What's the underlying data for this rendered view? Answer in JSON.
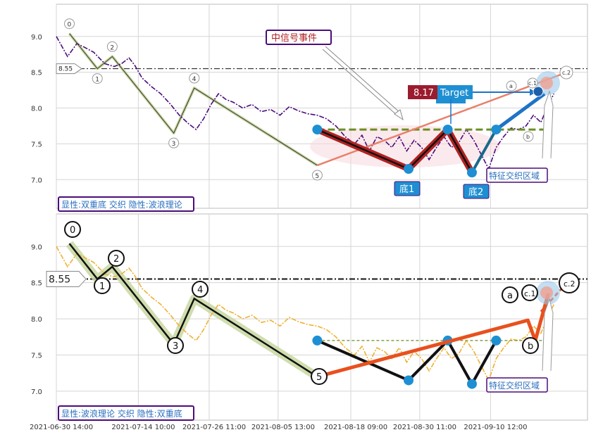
{
  "chart_data": [
    {
      "type": "line",
      "panel": "top",
      "yticks": [
        7.0,
        7.5,
        8.0,
        8.5,
        9.0
      ],
      "ylim": [
        6.6,
        9.45
      ],
      "xticks": [
        "2021-06-30 14:00",
        "2021-07-14 10:00",
        "2021-07-26 11:00",
        "2021-08-05 13:00",
        "2021-08-18 09:00",
        "2021-08-30 11:00",
        "2021-09-10 12:00"
      ],
      "price_series": [
        [
          0,
          9.0
        ],
        [
          0.6,
          8.72
        ],
        [
          1.1,
          8.9
        ],
        [
          1.5,
          8.85
        ],
        [
          2.0,
          8.78
        ],
        [
          2.6,
          8.62
        ],
        [
          3.1,
          8.58
        ],
        [
          3.5,
          8.62
        ],
        [
          3.9,
          8.7
        ],
        [
          4.2,
          8.6
        ],
        [
          4.6,
          8.42
        ],
        [
          5.1,
          8.3
        ],
        [
          5.6,
          8.2
        ],
        [
          6.1,
          8.06
        ],
        [
          6.6,
          7.9
        ],
        [
          7.1,
          7.78
        ],
        [
          7.5,
          7.7
        ],
        [
          7.9,
          7.85
        ],
        [
          8.3,
          8.05
        ],
        [
          8.7,
          8.2
        ],
        [
          9.1,
          8.12
        ],
        [
          9.5,
          8.08
        ],
        [
          10.0,
          8.0
        ],
        [
          10.5,
          8.05
        ],
        [
          11.0,
          7.95
        ],
        [
          11.5,
          7.98
        ],
        [
          12.0,
          7.9
        ],
        [
          12.5,
          8.02
        ],
        [
          13.0,
          7.96
        ],
        [
          13.5,
          7.92
        ],
        [
          14.0,
          7.9
        ],
        [
          14.5,
          7.85
        ],
        [
          15.0,
          7.75
        ],
        [
          15.5,
          7.6
        ],
        [
          16.0,
          7.5
        ],
        [
          16.4,
          7.62
        ],
        [
          16.8,
          7.4
        ],
        [
          17.2,
          7.6
        ],
        [
          17.6,
          7.55
        ],
        [
          18.0,
          7.45
        ],
        [
          18.4,
          7.6
        ],
        [
          18.8,
          7.4
        ],
        [
          19.2,
          7.55
        ],
        [
          19.6,
          7.45
        ],
        [
          20.0,
          7.28
        ],
        [
          20.4,
          7.45
        ],
        [
          20.8,
          7.6
        ],
        [
          21.2,
          7.45
        ],
        [
          21.6,
          7.52
        ],
        [
          22.0,
          7.7
        ],
        [
          22.4,
          7.55
        ],
        [
          22.8,
          7.35
        ],
        [
          23.2,
          7.15
        ],
        [
          23.6,
          7.45
        ],
        [
          24.0,
          7.6
        ],
        [
          24.4,
          7.72
        ],
        [
          24.8,
          7.7
        ],
        [
          25.2,
          7.75
        ],
        [
          25.6,
          7.9
        ],
        [
          26.0,
          7.8
        ],
        [
          26.4,
          8.05
        ],
        [
          26.7,
          8.2
        ]
      ],
      "line_85": 8.55,
      "line_85_label": "8.55",
      "wave_points": [
        {
          "label": "0",
          "x": 0.7,
          "y": 9.04
        },
        {
          "label": "1",
          "x": 2.2,
          "y": 8.55
        },
        {
          "label": "2",
          "x": 3.0,
          "y": 8.72
        },
        {
          "label": "3",
          "x": 6.3,
          "y": 7.65
        },
        {
          "label": "4",
          "x": 7.4,
          "y": 8.28
        },
        {
          "label": "5",
          "x": 14.0,
          "y": 7.2
        }
      ],
      "pattern_points": [
        {
          "x": 14.0,
          "y": 7.7
        },
        {
          "x": 18.9,
          "y": 7.15
        },
        {
          "x": 21.0,
          "y": 7.7
        },
        {
          "x": 22.3,
          "y": 7.1
        },
        {
          "x": 23.6,
          "y": 7.7
        }
      ],
      "neckline_y": 7.7,
      "target": {
        "value": "8.17",
        "label": "Target",
        "y": 8.17
      },
      "abc": [
        {
          "label": "a",
          "x": 25.3,
          "y": 8.2
        },
        {
          "label": "b",
          "x": 25.7,
          "y": 7.7
        },
        {
          "label": "c.1",
          "x": 26.2,
          "y": 8.2
        },
        {
          "label": "c.2",
          "x": 27.0,
          "y": 8.48
        }
      ],
      "annotations": {
        "event_label": "中信号事件",
        "bottom1": "底1",
        "bottom2": "底2",
        "zone": "特征交织区域",
        "caption": "显性:双重底 交织 隐性:波浪理论"
      }
    },
    {
      "type": "line",
      "panel": "bottom",
      "yticks": [
        7.0,
        7.5,
        8.0,
        8.5,
        9.0
      ],
      "ylim": [
        6.6,
        9.45
      ],
      "xticks": [
        "2021-06-30 14:00",
        "2021-07-14 10:00",
        "2021-07-26 11:00",
        "2021-08-05 13:00",
        "2021-08-18 09:00",
        "2021-08-30 11:00",
        "2021-09-10 12:00"
      ],
      "line_85": 8.55,
      "line_85_label": "8.55",
      "annotations": {
        "zone": "特征交织区域",
        "caption": "显性:波浪理论 交织 隐性:双重底"
      }
    }
  ],
  "colors": {
    "price_top": "#4b0c7a",
    "price_bottom": "#f0b030",
    "wave_fill": "#c8d7a0",
    "pattern_red": "#b22222",
    "pattern_blue": "#1e8fd2",
    "neckline_green": "#6b8e23",
    "target_line": "#1e73c8",
    "orange": "#e8501e",
    "caption_border": "#4b0c7a",
    "caption_text": "#2a6fbf"
  }
}
